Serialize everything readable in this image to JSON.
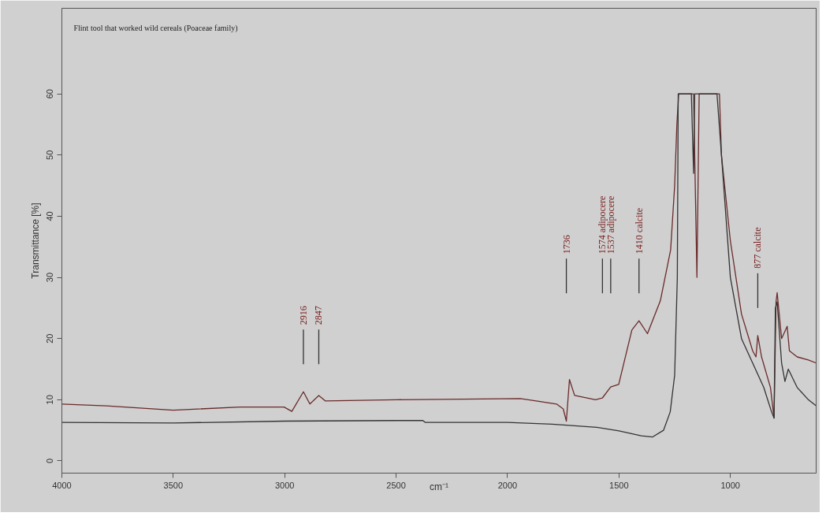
{
  "chart_data": {
    "type": "line",
    "title": "Flint tool that worked wild cereals (Poaceae family)",
    "xlabel": "cm⁻¹",
    "ylabel": "Transmittance [%]",
    "xlim": [
      4000,
      615
    ],
    "ylim": [
      -2,
      74
    ],
    "xticks": [
      4000,
      3500,
      3000,
      2500,
      2000,
      1500,
      1000
    ],
    "yticks": [
      0,
      10,
      20,
      30,
      40,
      50,
      60
    ],
    "grid": false,
    "marker": "none",
    "line_style": "solid",
    "series": [
      {
        "color": "#6b2a2a",
        "x": [
          4000,
          3800,
          3500,
          3200,
          3003,
          2968,
          2916,
          2887,
          2847,
          2817,
          2500,
          2200,
          1943,
          1780,
          1750,
          1736,
          1722,
          1699,
          1605,
          1574,
          1537,
          1501,
          1442,
          1410,
          1372,
          1314,
          1268,
          1250,
          1240,
          1232,
          1165,
          1150,
          1140,
          1049,
          1040,
          1000,
          950,
          900,
          885,
          877,
          860,
          820,
          804,
          795,
          790,
          770,
          745,
          735,
          700,
          650,
          615
        ],
        "values": [
          9.3,
          9.0,
          8.3,
          8.8,
          8.8,
          8.1,
          11.3,
          9.3,
          10.7,
          9.8,
          10.0,
          10.1,
          10.2,
          9.3,
          8.5,
          6.5,
          13.3,
          10.7,
          10.0,
          10.3,
          12.1,
          12.5,
          21.4,
          22.9,
          20.8,
          26.2,
          34.5,
          45,
          55,
          60,
          60,
          30,
          60,
          60,
          50,
          36,
          24,
          18,
          17,
          20.5,
          17,
          12,
          7,
          26,
          27.5,
          20,
          22,
          18,
          17,
          16.5,
          16
        ]
      },
      {
        "color": "#333333",
        "x": [
          4000,
          3500,
          3000,
          2500,
          2380,
          2370,
          2000,
          1800,
          1600,
          1500,
          1400,
          1350,
          1300,
          1270,
          1250,
          1238,
          1234,
          1175,
          1165,
          1160,
          1060,
          1040,
          1000,
          950,
          900,
          850,
          815,
          804,
          798,
          790,
          770,
          755,
          740,
          700,
          650,
          615
        ],
        "values": [
          6.3,
          6.2,
          6.5,
          6.6,
          6.6,
          6.3,
          6.3,
          6.0,
          5.5,
          4.9,
          4.1,
          3.9,
          5.0,
          8,
          14,
          30,
          60,
          60,
          47,
          60,
          60,
          50,
          30,
          20,
          16,
          12,
          8,
          7,
          25,
          26,
          16,
          13,
          15,
          12,
          10,
          9
        ]
      }
    ],
    "ref_lines": [
      {
        "axis": "x",
        "value": 2916,
        "label": "2916"
      },
      {
        "axis": "x",
        "value": 2847,
        "label": "2847"
      },
      {
        "axis": "x",
        "value": 1736,
        "label": "1736"
      },
      {
        "axis": "x",
        "value": 1574,
        "label": "1574 adipocere"
      },
      {
        "axis": "x",
        "value": 1537,
        "label": "1537 adipocere"
      },
      {
        "axis": "x",
        "value": 1410,
        "label": "1410 calcite"
      },
      {
        "axis": "x",
        "value": 877,
        "label": "877 calcite"
      }
    ]
  }
}
